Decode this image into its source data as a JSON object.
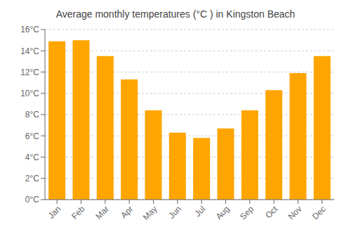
{
  "chart_data": {
    "type": "bar",
    "title": "Average monthly temperatures (°C ) in Kingston Beach",
    "categories": [
      "Jan",
      "Feb",
      "Mar",
      "Apr",
      "May",
      "Jun",
      "Jul",
      "Aug",
      "Sep",
      "Oct",
      "Nov",
      "Dec"
    ],
    "values": [
      14.9,
      15.0,
      13.5,
      11.3,
      8.4,
      6.3,
      5.8,
      6.7,
      8.4,
      10.3,
      11.9,
      13.5
    ],
    "color": "#FFA500",
    "ylim": [
      0,
      16
    ],
    "yticks": [
      {
        "value": 0,
        "label": "0°C"
      },
      {
        "value": 2,
        "label": "2°C"
      },
      {
        "value": 4,
        "label": "4°C"
      },
      {
        "value": 6,
        "label": "6°C"
      },
      {
        "value": 8,
        "label": "8°C"
      },
      {
        "value": 10,
        "label": "10°C"
      },
      {
        "value": 12,
        "label": "12°C"
      },
      {
        "value": 14,
        "label": "14°C"
      },
      {
        "value": 16,
        "label": "16°C"
      }
    ],
    "grid": true
  }
}
